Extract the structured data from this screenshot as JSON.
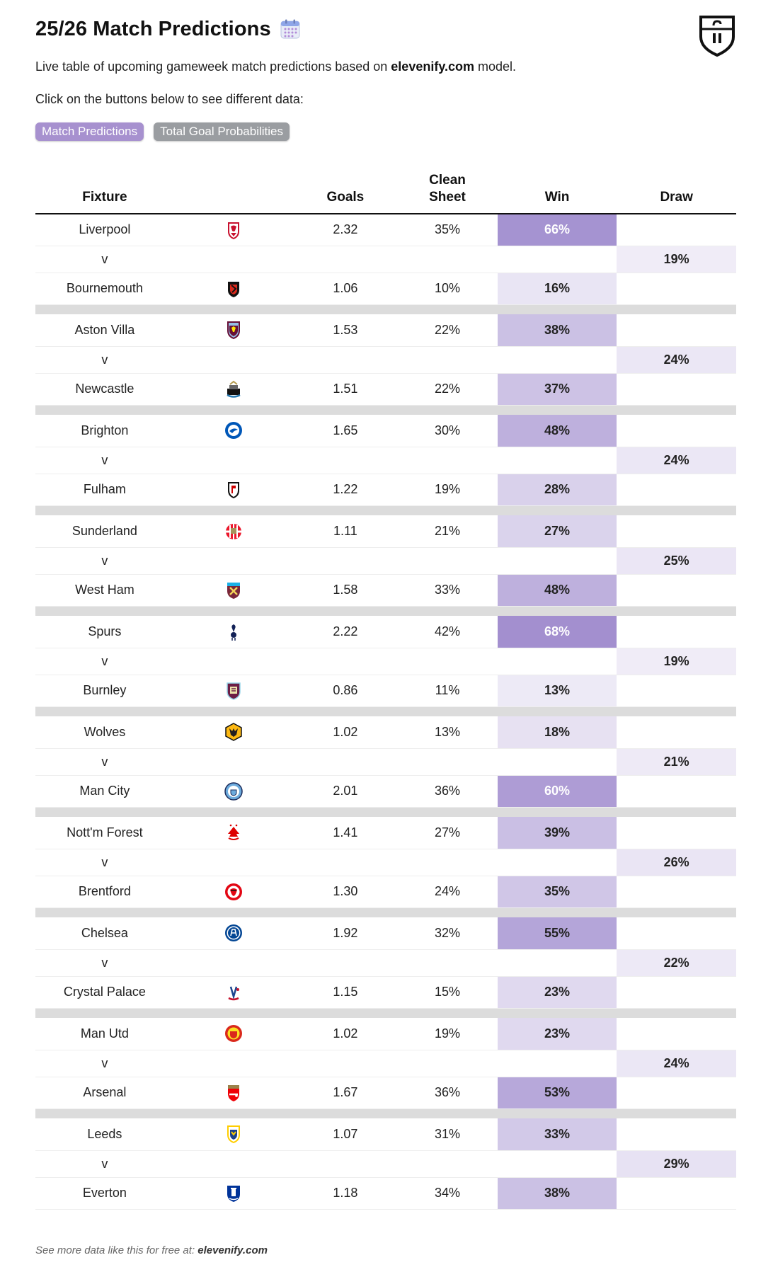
{
  "header": {
    "title": "25/26 Match Predictions",
    "subtitle_pre": "Live table of upcoming gameweek match predictions based on ",
    "subtitle_site": "elevenify.com",
    "subtitle_post": " model.",
    "instruction": "Click on the buttons below to see different data:",
    "calendar_icon": "calendar-icon",
    "logo_icon": "elevenify-shield-logo"
  },
  "buttons": {
    "match_predictions": "Match Predictions",
    "total_goal_probabilities": "Total Goal Probabilities"
  },
  "columns": {
    "fixture": "Fixture",
    "goals": "Goals",
    "clean_sheet_1": "Clean",
    "clean_sheet_2": "Sheet",
    "win": "Win",
    "draw": "Draw"
  },
  "vs_label": "v",
  "colors": {
    "heat_max": "#a08cce",
    "button_active": "#a791cf",
    "button_inactive": "#9a9da1",
    "separator": "#dcdcdc"
  },
  "fixtures": [
    {
      "home": {
        "team": "Liverpool",
        "badge": "liverpool-badge",
        "goals": "2.32",
        "clean_sheet": "35%",
        "win": "66%",
        "win_value": 66
      },
      "away": {
        "team": "Bournemouth",
        "badge": "bournemouth-badge",
        "goals": "1.06",
        "clean_sheet": "10%",
        "win": "16%",
        "win_value": 16
      },
      "draw": "19%",
      "draw_value": 19
    },
    {
      "home": {
        "team": "Aston Villa",
        "badge": "aston-villa-badge",
        "goals": "1.53",
        "clean_sheet": "22%",
        "win": "38%",
        "win_value": 38
      },
      "away": {
        "team": "Newcastle",
        "badge": "newcastle-badge",
        "goals": "1.51",
        "clean_sheet": "22%",
        "win": "37%",
        "win_value": 37
      },
      "draw": "24%",
      "draw_value": 24
    },
    {
      "home": {
        "team": "Brighton",
        "badge": "brighton-badge",
        "goals": "1.65",
        "clean_sheet": "30%",
        "win": "48%",
        "win_value": 48
      },
      "away": {
        "team": "Fulham",
        "badge": "fulham-badge",
        "goals": "1.22",
        "clean_sheet": "19%",
        "win": "28%",
        "win_value": 28
      },
      "draw": "24%",
      "draw_value": 24
    },
    {
      "home": {
        "team": "Sunderland",
        "badge": "sunderland-badge",
        "goals": "1.11",
        "clean_sheet": "21%",
        "win": "27%",
        "win_value": 27
      },
      "away": {
        "team": "West Ham",
        "badge": "west-ham-badge",
        "goals": "1.58",
        "clean_sheet": "33%",
        "win": "48%",
        "win_value": 48
      },
      "draw": "25%",
      "draw_value": 25
    },
    {
      "home": {
        "team": "Spurs",
        "badge": "spurs-badge",
        "goals": "2.22",
        "clean_sheet": "42%",
        "win": "68%",
        "win_value": 68
      },
      "away": {
        "team": "Burnley",
        "badge": "burnley-badge",
        "goals": "0.86",
        "clean_sheet": "11%",
        "win": "13%",
        "win_value": 13
      },
      "draw": "19%",
      "draw_value": 19
    },
    {
      "home": {
        "team": "Wolves",
        "badge": "wolves-badge",
        "goals": "1.02",
        "clean_sheet": "13%",
        "win": "18%",
        "win_value": 18
      },
      "away": {
        "team": "Man City",
        "badge": "man-city-badge",
        "goals": "2.01",
        "clean_sheet": "36%",
        "win": "60%",
        "win_value": 60
      },
      "draw": "21%",
      "draw_value": 21
    },
    {
      "home": {
        "team": "Nott'm Forest",
        "badge": "nottm-forest-badge",
        "goals": "1.41",
        "clean_sheet": "27%",
        "win": "39%",
        "win_value": 39
      },
      "away": {
        "team": "Brentford",
        "badge": "brentford-badge",
        "goals": "1.30",
        "clean_sheet": "24%",
        "win": "35%",
        "win_value": 35
      },
      "draw": "26%",
      "draw_value": 26
    },
    {
      "home": {
        "team": "Chelsea",
        "badge": "chelsea-badge",
        "goals": "1.92",
        "clean_sheet": "32%",
        "win": "55%",
        "win_value": 55
      },
      "away": {
        "team": "Crystal Palace",
        "badge": "crystal-palace-badge",
        "goals": "1.15",
        "clean_sheet": "15%",
        "win": "23%",
        "win_value": 23
      },
      "draw": "22%",
      "draw_value": 22
    },
    {
      "home": {
        "team": "Man Utd",
        "badge": "man-utd-badge",
        "goals": "1.02",
        "clean_sheet": "19%",
        "win": "23%",
        "win_value": 23
      },
      "away": {
        "team": "Arsenal",
        "badge": "arsenal-badge",
        "goals": "1.67",
        "clean_sheet": "36%",
        "win": "53%",
        "win_value": 53
      },
      "draw": "24%",
      "draw_value": 24
    },
    {
      "home": {
        "team": "Leeds",
        "badge": "leeds-badge",
        "goals": "1.07",
        "clean_sheet": "31%",
        "win": "33%",
        "win_value": 33
      },
      "away": {
        "team": "Everton",
        "badge": "everton-badge",
        "goals": "1.18",
        "clean_sheet": "34%",
        "win": "38%",
        "win_value": 38
      },
      "draw": "29%",
      "draw_value": 29
    }
  ],
  "footer": {
    "text": "See more data like this for free at: ",
    "site": "elevenify.com"
  }
}
